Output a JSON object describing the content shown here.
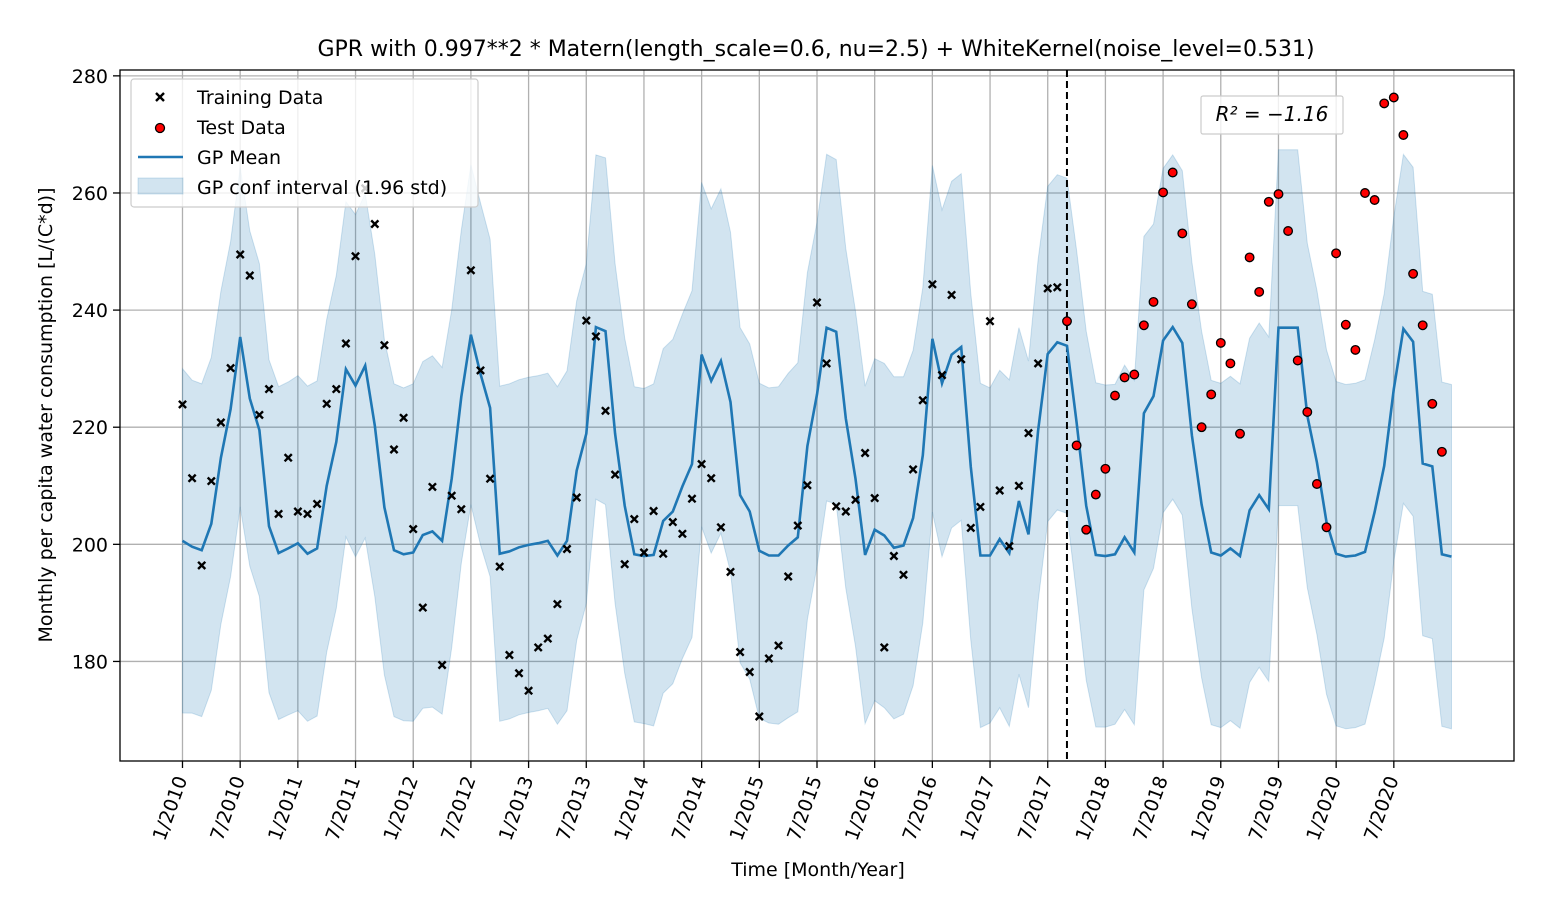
{
  "chart_data": {
    "type": "line",
    "title": "GPR with 0.997**2 * Matern(length_scale=0.6, nu=2.5) + WhiteKernel(noise_level=0.531)",
    "xlabel": "Time [Month/Year]",
    "ylabel": "Monthly per capita water consumption [L/(C*d)]",
    "annotation": "R² = −1.16",
    "grid": true,
    "legend_position": "top-left",
    "ylim": [
      163,
      281
    ],
    "xlim": [
      -6.5,
      138.5
    ],
    "y_ticks": [
      180,
      200,
      220,
      240,
      260,
      280
    ],
    "x_ticks": [
      {
        "x": 0,
        "label": "1/2010"
      },
      {
        "x": 6,
        "label": "7/2010"
      },
      {
        "x": 12,
        "label": "1/2011"
      },
      {
        "x": 18,
        "label": "7/2011"
      },
      {
        "x": 24,
        "label": "1/2012"
      },
      {
        "x": 30,
        "label": "7/2012"
      },
      {
        "x": 36,
        "label": "1/2013"
      },
      {
        "x": 42,
        "label": "7/2013"
      },
      {
        "x": 48,
        "label": "1/2014"
      },
      {
        "x": 54,
        "label": "7/2014"
      },
      {
        "x": 60,
        "label": "1/2015"
      },
      {
        "x": 66,
        "label": "7/2015"
      },
      {
        "x": 72,
        "label": "1/2016"
      },
      {
        "x": 78,
        "label": "7/2016"
      },
      {
        "x": 84,
        "label": "1/2017"
      },
      {
        "x": 90,
        "label": "7/2017"
      },
      {
        "x": 96,
        "label": "1/2018"
      },
      {
        "x": 102,
        "label": "7/2018"
      },
      {
        "x": 108,
        "label": "1/2019"
      },
      {
        "x": 114,
        "label": "7/2019"
      },
      {
        "x": 120,
        "label": "1/2020"
      },
      {
        "x": 126,
        "label": "7/2020"
      }
    ],
    "split_x": 92,
    "legend": [
      {
        "label": "Training Data",
        "marker": "x",
        "color": "#000000"
      },
      {
        "label": "Test Data",
        "marker": "circle",
        "color": "#d62728"
      },
      {
        "label": "GP Mean",
        "marker": "line",
        "color": "#1f77b4"
      },
      {
        "label": "GP conf interval (1.96 std)",
        "marker": "patch",
        "color": "#1f77b4"
      }
    ],
    "colors": {
      "mean": "#1f77b4",
      "band": "#1f77b4",
      "train": "#000000",
      "test": "#ff0000"
    },
    "x_start": 0,
    "training_data": [
      223.9,
      211.3,
      196.4,
      210.8,
      220.8,
      230.1,
      249.5,
      245.9,
      222.1,
      226.5,
      205.2,
      214.8,
      205.6,
      205.2,
      206.9,
      224.0,
      226.5,
      234.3,
      249.2,
      260.8,
      254.7,
      234.0,
      216.2,
      221.6,
      202.6,
      189.2,
      209.8,
      179.4,
      208.3,
      206.0,
      246.8,
      229.7,
      211.2,
      196.2,
      181.1,
      178.0,
      175.0,
      182.4,
      183.9,
      189.8,
      199.2,
      208.0,
      238.2,
      235.5,
      222.8,
      211.9,
      196.6,
      204.3,
      198.6,
      205.7,
      198.4,
      203.8,
      201.8,
      207.8,
      213.7,
      211.3,
      202.9,
      195.3,
      181.6,
      178.2,
      170.6,
      180.5,
      182.7,
      194.5,
      203.2,
      210.1,
      241.3,
      230.9,
      206.5,
      205.6,
      207.6,
      215.6,
      207.9,
      182.4,
      198.0,
      194.8,
      212.8,
      224.6,
      244.4,
      228.9,
      242.6,
      231.6,
      202.8,
      206.4,
      238.1,
      209.2,
      199.7,
      210.0,
      219.0,
      230.9,
      243.7,
      243.9
    ],
    "test_data": [
      238.1,
      216.9,
      202.5,
      208.5,
      212.9,
      225.4,
      228.5,
      229.0,
      237.4,
      241.4,
      260.1,
      263.5,
      253.1,
      241.0,
      220.0,
      225.6,
      234.4,
      230.9,
      218.9,
      249.0,
      243.1,
      258.5,
      259.8,
      253.5,
      231.4,
      222.6,
      210.3,
      202.9,
      249.7,
      237.5,
      233.2,
      260.0,
      258.8,
      275.3,
      276.3,
      269.9,
      246.2,
      237.4,
      224.0,
      215.8
    ],
    "gp_mean": [
      200.6,
      199.6,
      199.0,
      203.5,
      214.8,
      223.1,
      235.4,
      224.9,
      219.5,
      203.1,
      198.5,
      199.3,
      200.2,
      198.4,
      199.3,
      210.0,
      217.5,
      229.9,
      227.1,
      230.5,
      220.3,
      206.3,
      199.0,
      198.3,
      198.6,
      201.6,
      202.2,
      200.6,
      211.2,
      225.2,
      235.8,
      229.1,
      223.3,
      198.4,
      198.8,
      199.5,
      199.9,
      200.2,
      200.6,
      198.1,
      200.6,
      212.6,
      218.9,
      237.1,
      236.4,
      218.9,
      206.6,
      198.3,
      198.0,
      198.2,
      204.0,
      205.6,
      209.9,
      213.7,
      232.4,
      227.9,
      231.3,
      224.3,
      208.4,
      205.6,
      198.9,
      198.1,
      198.1,
      199.8,
      201.2,
      216.8,
      225.6,
      237.0,
      236.3,
      221.5,
      211.2,
      198.2,
      202.5,
      201.5,
      199.4,
      199.8,
      204.5,
      215.2,
      235.1,
      227.5,
      232.4,
      233.7,
      213.2,
      198.1,
      198.1,
      200.9,
      198.5,
      207.4,
      201.7,
      219.4,
      232.5,
      234.5,
      233.9,
      220.8,
      206.6,
      198.2,
      198.0,
      198.3,
      201.2,
      198.6,
      222.4,
      225.3,
      234.8,
      237.1,
      234.4,
      218.6,
      206.8,
      198.6,
      198.1,
      199.3,
      198.0,
      205.8,
      208.4,
      206.0,
      237.0,
      237.0,
      237.0,
      222.0,
      214.0,
      203.8,
      198.4,
      197.9,
      198.1,
      198.7,
      205.5,
      213.4,
      226.5,
      236.8,
      234.6,
      213.8,
      213.3,
      198.3,
      197.9
    ],
    "gp_std": [
      15.0,
      14.5,
      14.5,
      14.5,
      14.5,
      14.6,
      14.8,
      14.6,
      14.5,
      14.5,
      14.5,
      14.5,
      14.6,
      14.6,
      14.6,
      14.5,
      14.5,
      14.6,
      14.9,
      15.0,
      14.9,
      14.6,
      14.5,
      14.5,
      14.7,
      15.1,
      15.3,
      15.1,
      14.7,
      14.5,
      14.8,
      14.9,
      14.7,
      14.6,
      14.6,
      14.6,
      14.6,
      14.6,
      14.6,
      14.7,
      14.8,
      14.8,
      14.8,
      15.0,
      15.1,
      14.8,
      14.6,
      14.6,
      14.6,
      14.9,
      15.0,
      15.0,
      15.0,
      15.1,
      15.0,
      15.0,
      15.0,
      14.8,
      14.6,
      14.6,
      14.6,
      14.6,
      14.7,
      15.0,
      15.2,
      15.1,
      15.0,
      15.1,
      15.0,
      14.8,
      14.6,
      14.7,
      14.9,
      15.0,
      14.9,
      14.7,
      14.6,
      14.6,
      15.1,
      15.1,
      15.1,
      15.1,
      15.1,
      15.0,
      14.6,
      14.7,
      15.1,
      15.1,
      15.1,
      14.9,
      14.6,
      14.6,
      14.6,
      15.0,
      15.2,
      15.0,
      14.9,
      14.8,
      15.0,
      15.0,
      15.4,
      15.0,
      15.0,
      15.0,
      15.0,
      15.1,
      15.1,
      15.0,
      15.0,
      15.0,
      15.0,
      15.0,
      15.0,
      15.0,
      15.5,
      15.5,
      15.5,
      15.0,
      15.0,
      15.0,
      15.0,
      15.0,
      15.0,
      15.0,
      15.0,
      15.0,
      15.0,
      15.2,
      15.2,
      15.0,
      15.0,
      15.0,
      15.0
    ]
  }
}
